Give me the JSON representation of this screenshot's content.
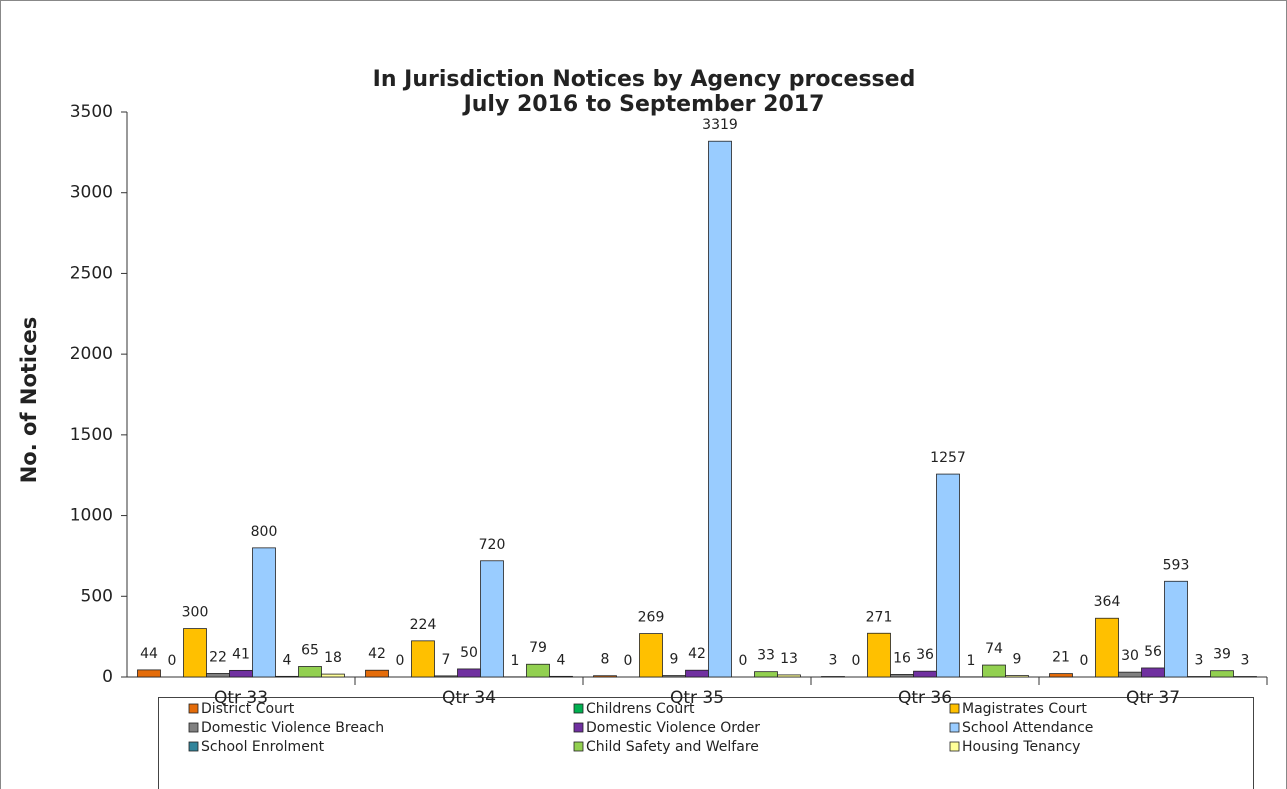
{
  "chart_data": {
    "type": "bar",
    "title": [
      "In Jurisdiction Notices by Agency processed",
      "July 2016 to September 2017"
    ],
    "y_label": "No. of Notices",
    "categories": [
      "Qtr 33",
      "Qtr 34",
      "Qtr 35",
      "Qtr 36",
      "Qtr 37"
    ],
    "series": [
      {
        "name": "District Court",
        "color": "#e46c0a",
        "values": [
          44,
          42,
          8,
          3,
          21
        ]
      },
      {
        "name": "Childrens Court",
        "color": "#00b050",
        "values": [
          0,
          0,
          0,
          0,
          0
        ]
      },
      {
        "name": "Magistrates Court",
        "color": "#ffc000",
        "values": [
          300,
          224,
          269,
          271,
          364
        ]
      },
      {
        "name": "Domestic Violence Breach",
        "color": "#808080",
        "values": [
          22,
          7,
          9,
          16,
          30
        ]
      },
      {
        "name": "Domestic Violence Order",
        "color": "#7030a0",
        "values": [
          41,
          50,
          42,
          36,
          56
        ]
      },
      {
        "name": "School Attendance",
        "color": "#99ccff",
        "values": [
          800,
          720,
          3319,
          1257,
          593
        ]
      },
      {
        "name": "School Enrolment",
        "color": "#31849b",
        "values": [
          4,
          1,
          0,
          1,
          3
        ]
      },
      {
        "name": "Child Safety and Welfare",
        "color": "#92d050",
        "values": [
          65,
          79,
          33,
          74,
          39
        ]
      },
      {
        "name": "Housing Tenancy",
        "color": "#ffff99",
        "values": [
          18,
          4,
          13,
          9,
          3
        ]
      }
    ],
    "ylim": [
      0,
      3500
    ],
    "yticks": [
      0,
      500,
      1000,
      1500,
      2000,
      2500,
      3000,
      3500
    ],
    "grid": false,
    "legend": "bottom"
  }
}
